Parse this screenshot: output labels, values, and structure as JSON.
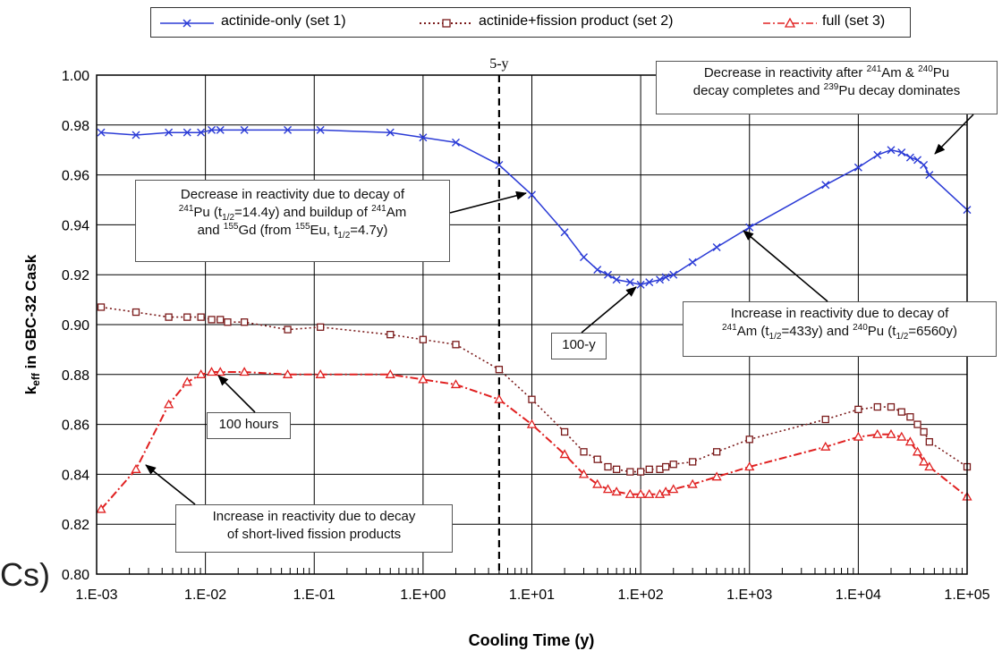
{
  "chart_data": {
    "type": "line",
    "xscale": "log",
    "xlabel": "Cooling Time (y)",
    "ylabel": "keff in GBC-32 Cask",
    "ylabel_parts": {
      "k": "k",
      "sub": "eff",
      "rest": " in GBC-32 Cask"
    },
    "xlim": [
      0.001,
      100000
    ],
    "ylim": [
      0.8,
      1.0
    ],
    "x_ticks": [
      "1.E-03",
      "1.E-02",
      "1.E-01",
      "1.E+00",
      "1.E+01",
      "1.E+02",
      "1.E+03",
      "1.E+04",
      "1.E+05"
    ],
    "y_ticks": [
      "0.80",
      "0.82",
      "0.84",
      "0.86",
      "0.88",
      "0.90",
      "0.92",
      "0.94",
      "0.96",
      "0.98",
      "1.00"
    ],
    "grid": true,
    "legend_position": "top",
    "reference_line": {
      "x": 5,
      "label": "5-y"
    },
    "series": [
      {
        "name": "actinide-only (set 1)",
        "color": "#2b3bd6",
        "marker": "x",
        "points": [
          [
            0.0011,
            0.977
          ],
          [
            0.0023,
            0.976
          ],
          [
            0.0046,
            0.977
          ],
          [
            0.0068,
            0.977
          ],
          [
            0.0091,
            0.977
          ],
          [
            0.0114,
            0.978
          ],
          [
            0.0137,
            0.978
          ],
          [
            0.0228,
            0.978
          ],
          [
            0.057,
            0.978
          ],
          [
            0.114,
            0.978
          ],
          [
            0.5,
            0.977
          ],
          [
            1.0,
            0.975
          ],
          [
            2.0,
            0.973
          ],
          [
            5.0,
            0.964
          ],
          [
            10,
            0.952
          ],
          [
            20,
            0.937
          ],
          [
            30,
            0.927
          ],
          [
            40,
            0.922
          ],
          [
            50,
            0.92
          ],
          [
            60,
            0.918
          ],
          [
            80,
            0.917
          ],
          [
            100,
            0.916
          ],
          [
            120,
            0.917
          ],
          [
            150,
            0.918
          ],
          [
            170,
            0.919
          ],
          [
            200,
            0.92
          ],
          [
            300,
            0.925
          ],
          [
            500,
            0.931
          ],
          [
            1000,
            0.939
          ],
          [
            5000,
            0.956
          ],
          [
            10000,
            0.963
          ],
          [
            15000,
            0.968
          ],
          [
            20000,
            0.97
          ],
          [
            25000,
            0.969
          ],
          [
            30000,
            0.967
          ],
          [
            35000,
            0.966
          ],
          [
            40000,
            0.964
          ],
          [
            45000,
            0.96
          ],
          [
            100000,
            0.946
          ]
        ]
      },
      {
        "name": "actinide+fission product (set 2)",
        "color": "#7a1a1a",
        "marker": "square",
        "points": [
          [
            0.0011,
            0.907
          ],
          [
            0.0023,
            0.905
          ],
          [
            0.0046,
            0.903
          ],
          [
            0.0068,
            0.903
          ],
          [
            0.0091,
            0.903
          ],
          [
            0.0114,
            0.902
          ],
          [
            0.0137,
            0.902
          ],
          [
            0.016,
            0.901
          ],
          [
            0.0228,
            0.901
          ],
          [
            0.057,
            0.898
          ],
          [
            0.114,
            0.899
          ],
          [
            0.5,
            0.896
          ],
          [
            1.0,
            0.894
          ],
          [
            2.0,
            0.892
          ],
          [
            5.0,
            0.882
          ],
          [
            10,
            0.87
          ],
          [
            20,
            0.857
          ],
          [
            30,
            0.849
          ],
          [
            40,
            0.846
          ],
          [
            50,
            0.843
          ],
          [
            60,
            0.842
          ],
          [
            80,
            0.841
          ],
          [
            100,
            0.841
          ],
          [
            120,
            0.842
          ],
          [
            150,
            0.842
          ],
          [
            170,
            0.843
          ],
          [
            200,
            0.844
          ],
          [
            300,
            0.845
          ],
          [
            500,
            0.849
          ],
          [
            1000,
            0.854
          ],
          [
            5000,
            0.862
          ],
          [
            10000,
            0.866
          ],
          [
            15000,
            0.867
          ],
          [
            20000,
            0.867
          ],
          [
            25000,
            0.865
          ],
          [
            30000,
            0.863
          ],
          [
            35000,
            0.86
          ],
          [
            40000,
            0.857
          ],
          [
            45000,
            0.853
          ],
          [
            100000,
            0.843
          ]
        ]
      },
      {
        "name": "full (set 3)",
        "color": "#e02020",
        "marker": "triangle",
        "points": [
          [
            0.0011,
            0.826
          ],
          [
            0.0023,
            0.842
          ],
          [
            0.0046,
            0.868
          ],
          [
            0.0068,
            0.877
          ],
          [
            0.0091,
            0.88
          ],
          [
            0.0114,
            0.881
          ],
          [
            0.0137,
            0.881
          ],
          [
            0.0228,
            0.881
          ],
          [
            0.057,
            0.88
          ],
          [
            0.114,
            0.88
          ],
          [
            0.5,
            0.88
          ],
          [
            1.0,
            0.878
          ],
          [
            2.0,
            0.876
          ],
          [
            5.0,
            0.87
          ],
          [
            10,
            0.86
          ],
          [
            20,
            0.848
          ],
          [
            30,
            0.84
          ],
          [
            40,
            0.836
          ],
          [
            50,
            0.834
          ],
          [
            60,
            0.833
          ],
          [
            80,
            0.832
          ],
          [
            100,
            0.832
          ],
          [
            120,
            0.832
          ],
          [
            150,
            0.832
          ],
          [
            170,
            0.833
          ],
          [
            200,
            0.834
          ],
          [
            300,
            0.836
          ],
          [
            500,
            0.839
          ],
          [
            1000,
            0.843
          ],
          [
            5000,
            0.851
          ],
          [
            10000,
            0.855
          ],
          [
            15000,
            0.856
          ],
          [
            20000,
            0.856
          ],
          [
            25000,
            0.855
          ],
          [
            30000,
            0.853
          ],
          [
            35000,
            0.849
          ],
          [
            40000,
            0.845
          ],
          [
            45000,
            0.843
          ],
          [
            100000,
            0.831
          ]
        ]
      }
    ],
    "annotations": {
      "am_pu_decay": {
        "l1a": "Decrease in reactivity after ",
        "l1s1": "241",
        "l1b": "Am & ",
        "l1s2": "240",
        "l1c": "Pu",
        "l2a": "decay completes and ",
        "l2s": "239",
        "l2b": "Pu decay dominates"
      },
      "pu241_decay": {
        "l1": "Decrease in reactivity due to decay of",
        "l2s1": "241",
        "l2a": "Pu (t",
        "l2sub": "1/2",
        "l2b": "=14.4y) and buildup of ",
        "l2s2": "241",
        "l2c": "Am",
        "l3a": "and ",
        "l3s1": "155",
        "l3b": "Gd (from ",
        "l3s2": "155",
        "l3c": "Eu, t",
        "l3sub": "1/2",
        "l3d": "=4.7y)"
      },
      "hundred_y": "100-y",
      "am241_pu240": {
        "l1": "Increase in reactivity due to decay of",
        "l2s1": "241",
        "l2a": "Am (t",
        "l2sub1": "1/2",
        "l2b": "=433y) and ",
        "l2s2": "240",
        "l2c": "Pu (t",
        "l2sub2": "1/2",
        "l2d": "=6560y)"
      },
      "hundred_hours": "100 hours",
      "short_lived": {
        "l1": "Increase in reactivity due to decay",
        "l2": "of short-lived fission products"
      }
    }
  },
  "edge_fragment": "Cs)"
}
